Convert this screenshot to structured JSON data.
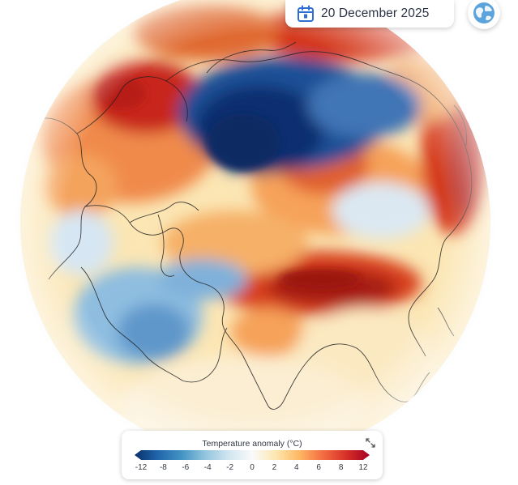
{
  "header": {
    "date_label": "20 December 2025",
    "calendar_icon": "calendar-icon",
    "globe_icon": "globe-icon"
  },
  "map": {
    "projection": "orthographic globe",
    "region": "Northern Hemisphere (Europe, Arctic, Asia)",
    "variable": "temperature anomaly"
  },
  "legend": {
    "title": "Temperature anomaly (°C)",
    "ticks": [
      "-12",
      "-8",
      "-6",
      "-4",
      "-2",
      "0",
      "2",
      "4",
      "6",
      "8",
      "12"
    ],
    "tick_values": [
      -12,
      -8,
      -6,
      -4,
      -2,
      0,
      2,
      4,
      6,
      8,
      12
    ],
    "colors": [
      "#08306b",
      "#2166ac",
      "#4393c3",
      "#92c5de",
      "#d1e5f0",
      "#fafafa",
      "#fde7b0",
      "#fdb863",
      "#f46d43",
      "#d73027",
      "#a50026"
    ],
    "expand_icon": "expand-icon"
  }
}
